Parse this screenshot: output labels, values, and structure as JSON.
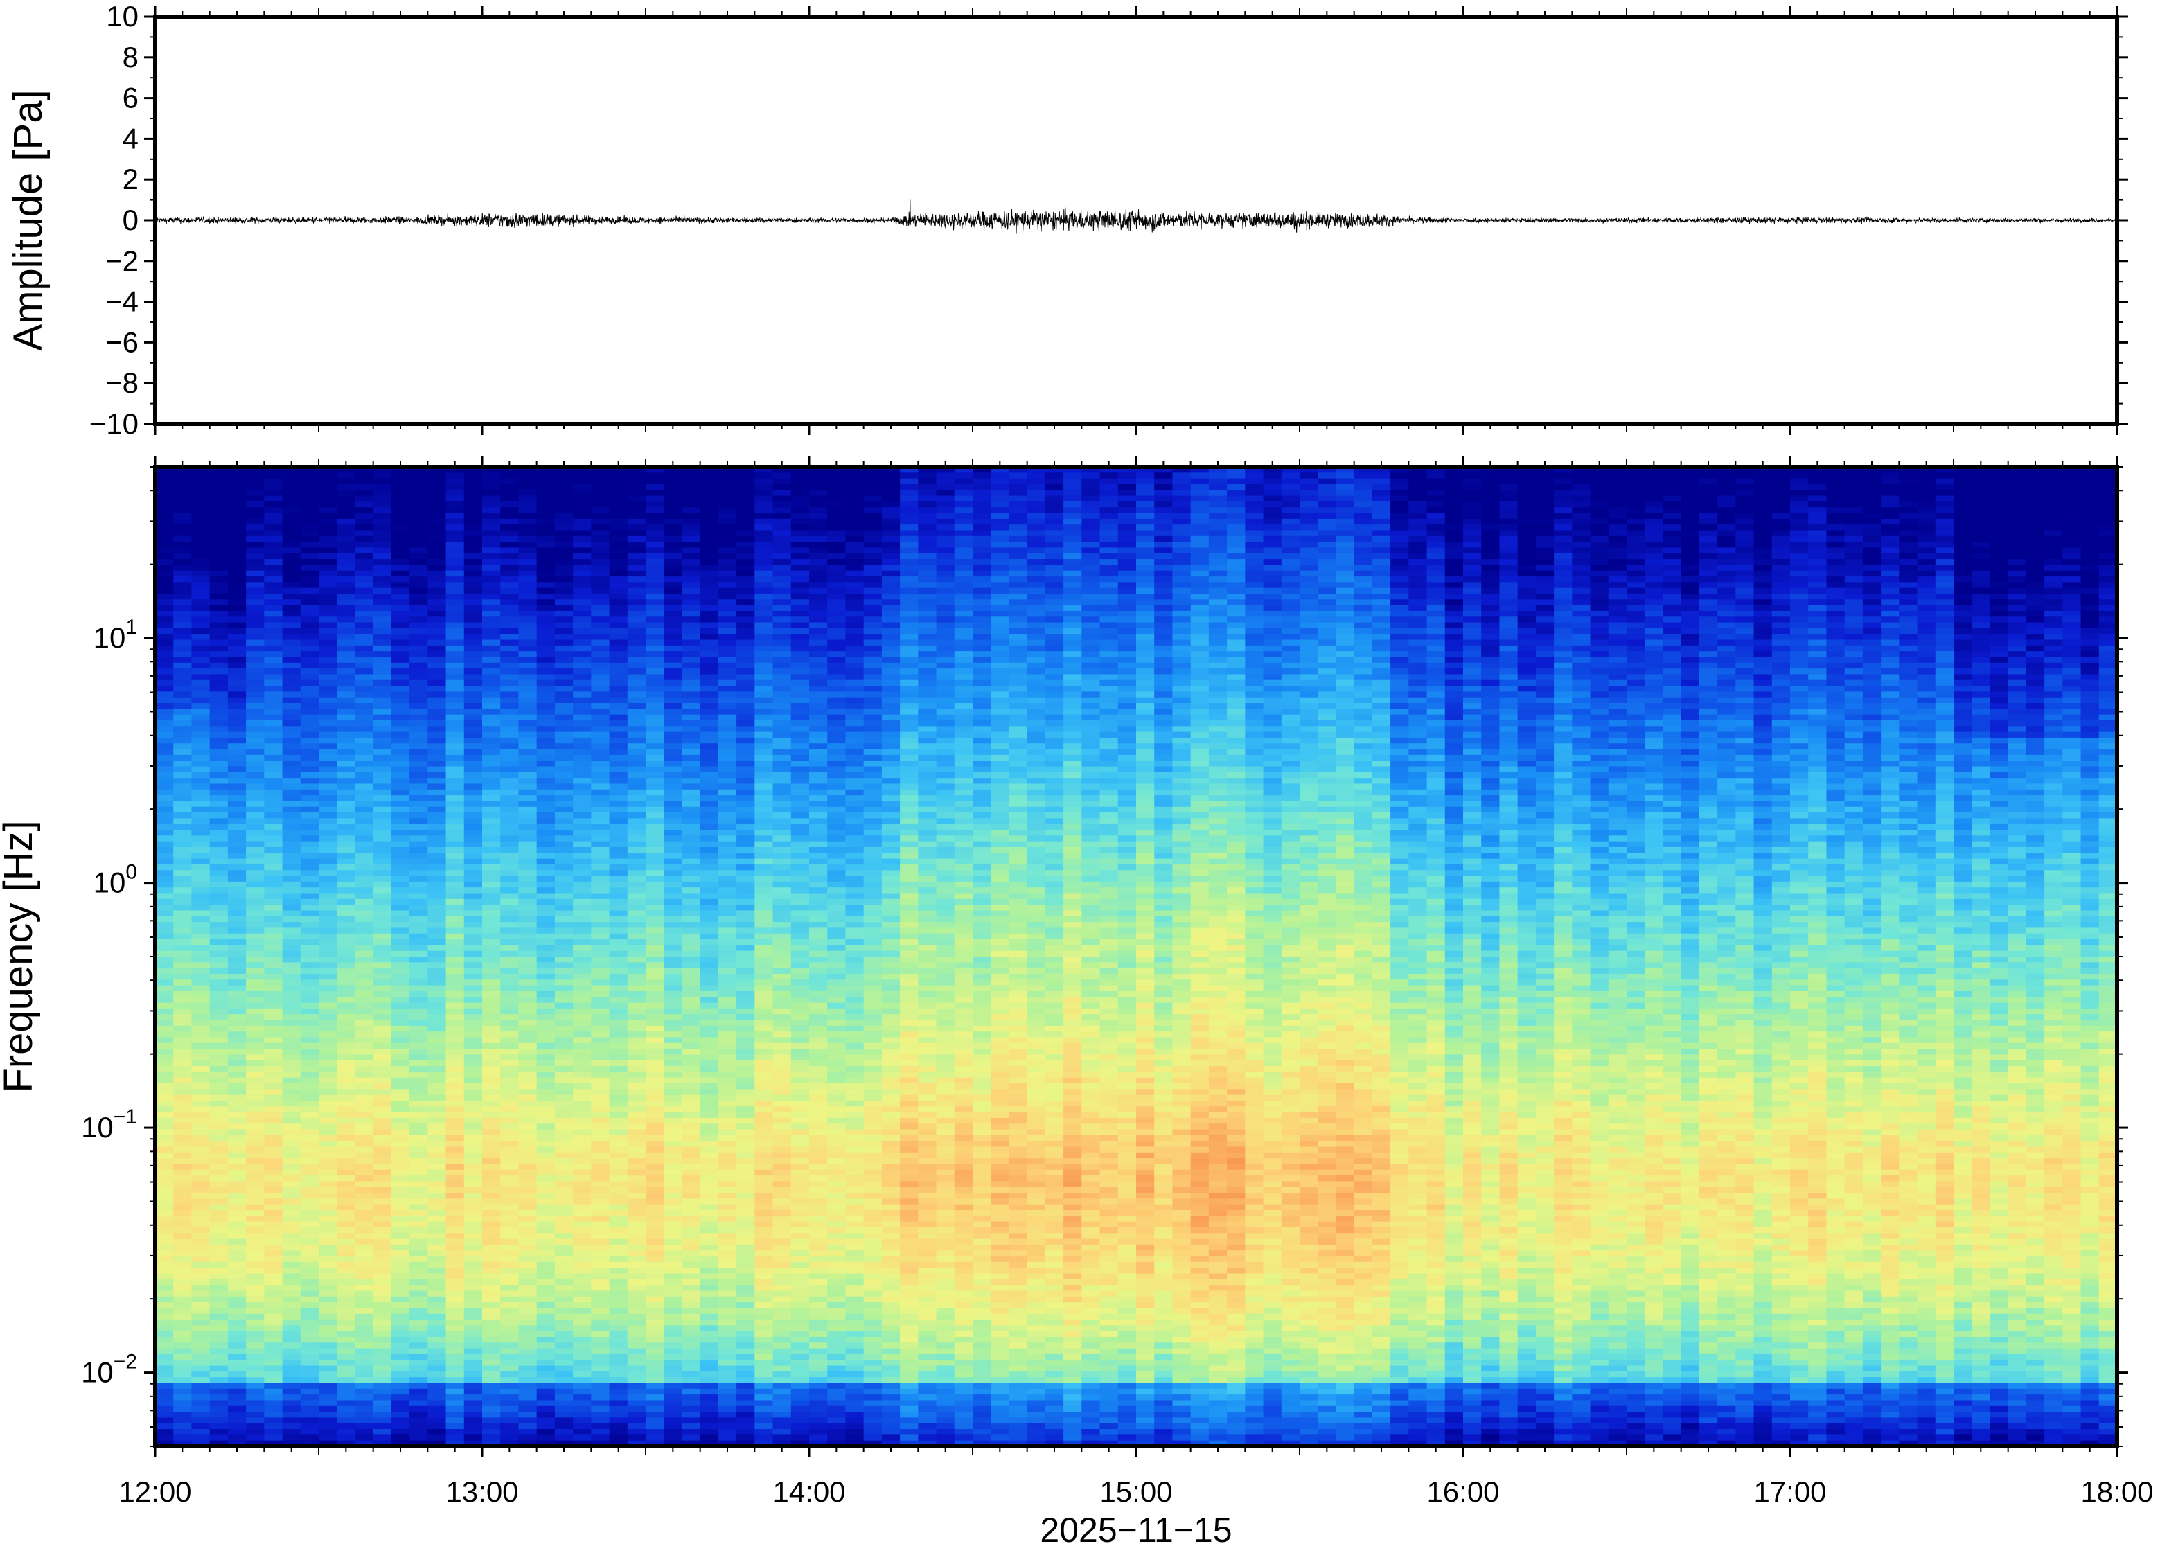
{
  "chart_data": [
    {
      "type": "line",
      "ylabel": "Amplitude [Pa]",
      "ylim": [
        -10,
        10
      ],
      "yticks": [
        10,
        8,
        6,
        4,
        2,
        0,
        -2,
        -4,
        -6,
        -8,
        -10
      ],
      "ytick_labels": [
        "10",
        "8",
        "6",
        "4",
        "2",
        "0",
        "−2",
        "−4",
        "−6",
        "−8",
        "−10"
      ],
      "xlim_hours": [
        12,
        18
      ],
      "series": [
        {
          "color": "#000000",
          "envelope": {
            "time_hours": [
              12.0,
              12.5,
              12.8,
              13.0,
              13.1,
              13.25,
              13.4,
              13.6,
              14.0,
              14.25,
              14.3,
              14.5,
              14.65,
              14.8,
              15.0,
              15.1,
              15.3,
              15.45,
              15.6,
              15.75,
              15.8,
              16.0,
              16.5,
              17.0,
              17.5,
              18.0
            ],
            "amplitude_pa": [
              0.25,
              0.25,
              0.3,
              0.55,
              0.7,
              0.45,
              0.3,
              0.25,
              0.2,
              0.2,
              0.55,
              0.75,
              0.9,
              0.8,
              0.9,
              0.75,
              0.6,
              0.75,
              0.6,
              0.55,
              0.3,
              0.2,
              0.2,
              0.25,
              0.2,
              0.15
            ]
          }
        }
      ]
    },
    {
      "type": "heatmap",
      "ylabel": "Frequency [Hz]",
      "yscale": "log",
      "ylim": [
        0.005,
        50
      ],
      "yticks": [
        0.01,
        0.1,
        1,
        10
      ],
      "ytick_mantissa": [
        "10",
        "10",
        "10",
        "10"
      ],
      "ytick_exponent": [
        "−2",
        "−1",
        "0",
        "1"
      ],
      "xlim_hours": [
        12,
        18
      ],
      "xticks_hours": [
        12,
        13,
        14,
        15,
        16,
        17,
        18
      ],
      "xtick_labels": [
        "12:00",
        "13:00",
        "14:00",
        "15:00",
        "16:00",
        "17:00",
        "18:00"
      ],
      "xlabel": "2025−11−15",
      "colormap": [
        "#00008f",
        "#0a1bd0",
        "#0f55e8",
        "#1a8ff5",
        "#3cc3f5",
        "#72e6d6",
        "#b2f29a",
        "#eef584",
        "#fcd77a",
        "#fba95e",
        "#f07838",
        "#d03a1c"
      ],
      "high_activity_window_hours": [
        14.3,
        15.8
      ],
      "peak_band_hz": [
        0.03,
        0.2
      ]
    }
  ]
}
